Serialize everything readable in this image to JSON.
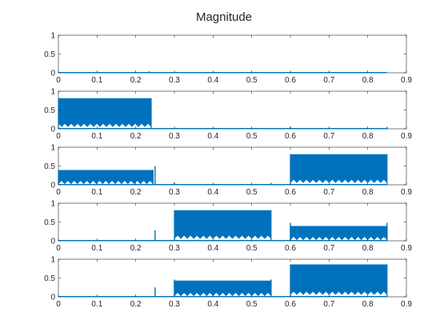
{
  "chart_data": {
    "type": "area",
    "title": "Magnitude",
    "line_color": "#0072BD",
    "axes_color": "#262626",
    "grid": false,
    "xlim": [
      0,
      0.9
    ],
    "ylim": [
      0,
      1
    ],
    "xticks": [
      0,
      0.1,
      0.2,
      0.3,
      0.4,
      0.5,
      0.6,
      0.7,
      0.8,
      0.9
    ],
    "xtick_labels": [
      "0",
      "0.1",
      "0.2",
      "0.3",
      "0.4",
      "0.5",
      "0.6",
      "0.7",
      "0.8",
      "0.9"
    ],
    "yticks": [
      0,
      0.5,
      1
    ],
    "ytick_labels": [
      "0",
      "0.5",
      "1"
    ],
    "panels": [
      {
        "blocks": [],
        "spikes": [
          {
            "x": 0.235,
            "y": 0.04
          }
        ]
      },
      {
        "blocks": [
          {
            "start": 0.0,
            "end": 0.24,
            "max": 0.8,
            "min": 0.05
          }
        ],
        "spikes": [
          {
            "x": 0.6,
            "y": 0.05
          },
          {
            "x": 0.85,
            "y": 0.05
          }
        ]
      },
      {
        "blocks": [
          {
            "start": 0.0,
            "end": 0.245,
            "max": 0.38,
            "min": 0.02
          },
          {
            "start": 0.6,
            "end": 0.85,
            "max": 0.8,
            "min": 0.05
          }
        ],
        "spikes": [
          {
            "x": 0.25,
            "y": 0.5
          },
          {
            "x": 0.3,
            "y": 0.06
          },
          {
            "x": 0.55,
            "y": 0.05
          }
        ]
      },
      {
        "blocks": [
          {
            "start": 0.3,
            "end": 0.55,
            "max": 0.8,
            "min": 0.05
          },
          {
            "start": 0.6,
            "end": 0.85,
            "max": 0.38,
            "min": 0.02
          }
        ],
        "spikes": [
          {
            "x": 0.25,
            "y": 0.28
          },
          {
            "x": 0.6,
            "y": 0.48
          },
          {
            "x": 0.85,
            "y": 0.48
          }
        ]
      },
      {
        "blocks": [
          {
            "start": 0.3,
            "end": 0.55,
            "max": 0.42,
            "min": 0.02
          },
          {
            "start": 0.6,
            "end": 0.85,
            "max": 0.85,
            "min": 0.05
          }
        ],
        "spikes": [
          {
            "x": 0.25,
            "y": 0.25
          },
          {
            "x": 0.3,
            "y": 0.46
          },
          {
            "x": 0.55,
            "y": 0.46
          }
        ]
      }
    ]
  }
}
